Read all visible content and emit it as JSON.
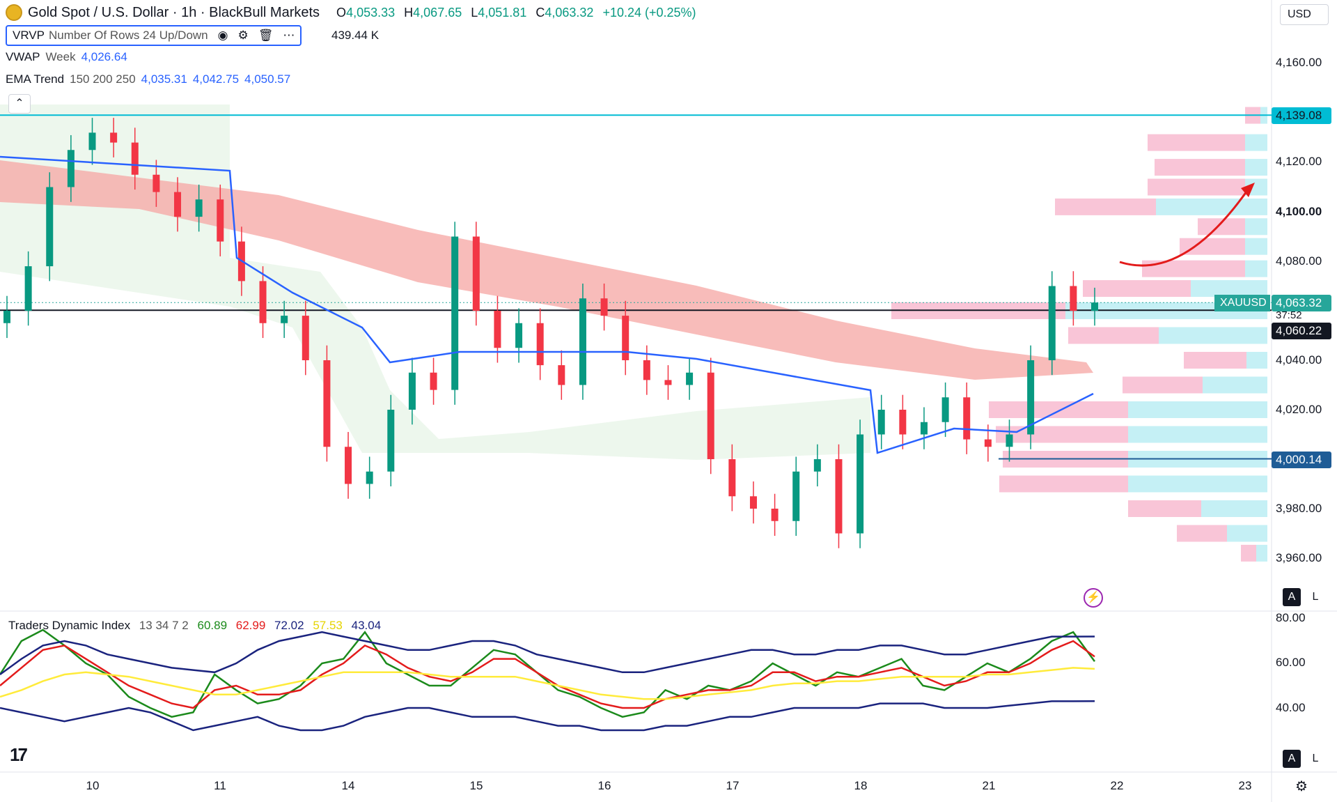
{
  "header": {
    "title": "Gold Spot / U.S. Dollar · 1h · BlackBull Markets",
    "ohlc": [
      {
        "label": "O",
        "value": "4,053.33"
      },
      {
        "label": "H",
        "value": "4,067.65"
      },
      {
        "label": "L",
        "value": "4,051.81"
      },
      {
        "label": "C",
        "value": "4,063.32"
      }
    ],
    "change": "+10.24 (+0.25%)",
    "currency": "USD"
  },
  "indicators": {
    "vrvp": {
      "name": "VRVP",
      "params": "Number Of Rows 24 Up/Down",
      "value": "439.44 K"
    },
    "vwap": {
      "name": "VWAP",
      "params": "Week",
      "value": "4,026.64"
    },
    "ema": {
      "name": "EMA Trend",
      "params": "150 200 250",
      "v1": "4,035.31",
      "v2": "4,042.75",
      "v3": "4,050.57"
    },
    "tdi": {
      "name": "Traders Dynamic Index",
      "params": "13 34 7 2",
      "v1": "60.89",
      "v2": "62.99",
      "v3": "72.02",
      "v4": "57.53",
      "v5": "43.04"
    }
  },
  "price_axis": {
    "ticks": [
      "4,160.00",
      "4,120.00",
      "4,100.00",
      "4,080.00",
      "4,040.00",
      "4,020.00",
      "3,980.00",
      "3,960.00"
    ],
    "bold_tick": "4,100.00",
    "tags": {
      "resistance": "4,139.08",
      "current": "4,063.32",
      "countdown": "37:52",
      "line": "4,060.22",
      "support": "4,000.14"
    },
    "symbol_tag": "XAUUSD"
  },
  "tdi_axis": {
    "ticks": [
      "80.00",
      "60.00",
      "40.00"
    ]
  },
  "time_axis": {
    "labels": [
      "10",
      "11",
      "14",
      "15",
      "16",
      "17",
      "18",
      "21",
      "22",
      "23"
    ]
  },
  "colors": {
    "up": "#089981",
    "down": "#f23645",
    "ema_band": "#f5a6a3",
    "vwap": "#2962ff",
    "resistance": "#00bcd4",
    "tdi_green": "#1b8a1b",
    "tdi_red": "#e31b1b",
    "tdi_yellow": "#ffeb3b",
    "tdi_navy": "#1a237e"
  },
  "chart_data": {
    "type": "candlestick",
    "title": "Gold Spot / U.S. Dollar · 1h · BlackBull Markets",
    "ylim": [
      3955,
      4170
    ],
    "x_labels": [
      "10",
      "11",
      "14",
      "15",
      "16",
      "17",
      "18",
      "21",
      "22",
      "23"
    ],
    "key_levels": {
      "resistance": 4139.08,
      "current": 4063.32,
      "line": 4060.22,
      "support": 4000.14
    },
    "series": [
      {
        "name": "Close",
        "values": [
          4060,
          4078,
          4110,
          4125,
          4132,
          4128,
          4115,
          4108,
          4098,
          4105,
          4088,
          4072,
          4055,
          4058,
          4040,
          4005,
          3990,
          3995,
          4020,
          4035,
          4028,
          4090,
          4060,
          4045,
          4055,
          4038,
          4030,
          4065,
          4058,
          4040,
          4032,
          4030,
          4035,
          4000,
          3985,
          3980,
          3975,
          3995,
          4000,
          3970,
          4010,
          4020,
          4010,
          4015,
          4025,
          4008,
          4005,
          4010,
          4040,
          4070,
          4060,
          4063.32
        ]
      }
    ]
  }
}
